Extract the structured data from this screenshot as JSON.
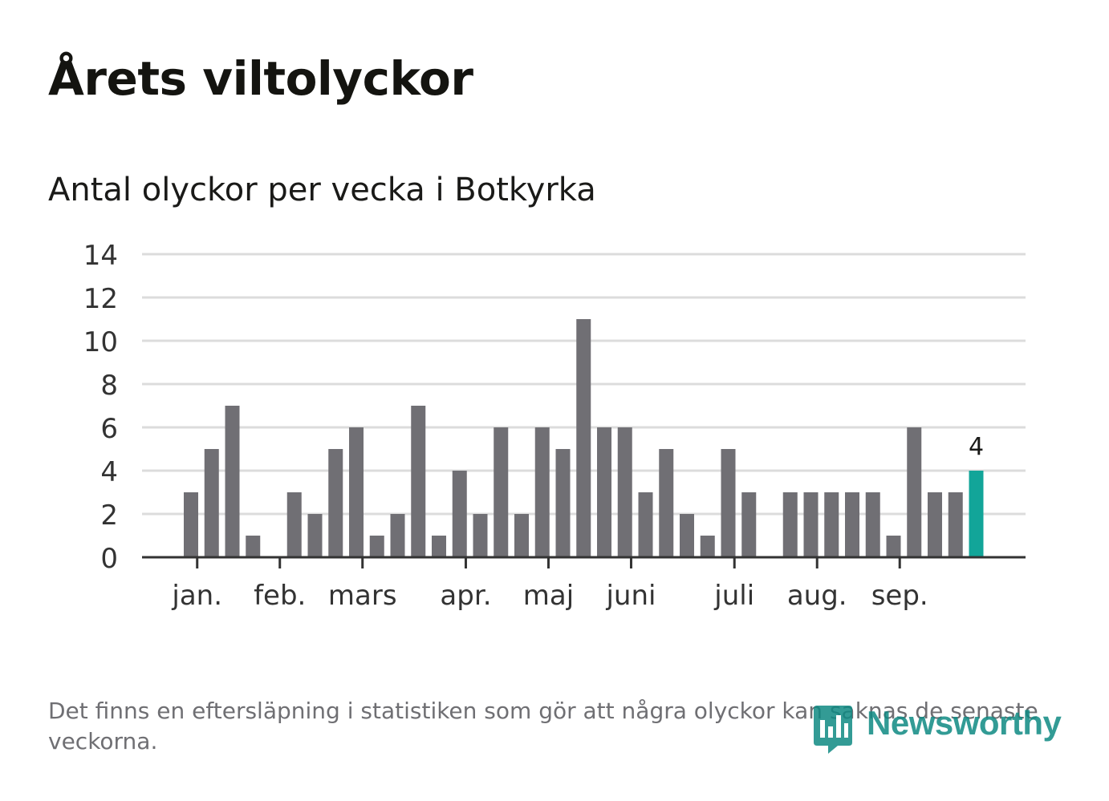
{
  "header": {
    "title": "Årets viltolyckor",
    "subtitle": "Antal olyckor per vecka i Botkyrka"
  },
  "footer": {
    "note": "Det finns en eftersläpning i statistiken som gör att några olyckor kan saknas de senaste veckorna.",
    "brand": "Newsworthy"
  },
  "colors": {
    "bar": "#706f74",
    "highlight": "#12a599",
    "grid": "#dcdcdc",
    "axis": "#333333",
    "text": "#1a1a18",
    "brand": "#0f8a83"
  },
  "chart_data": {
    "type": "bar",
    "title": "Antal olyckor per vecka i Botkyrka",
    "xlabel": "",
    "ylabel": "",
    "ylim": [
      0,
      14
    ],
    "yticks": [
      0,
      2,
      4,
      6,
      8,
      10,
      12,
      14
    ],
    "grid": true,
    "weeks": [
      1,
      2,
      3,
      4,
      5,
      6,
      7,
      8,
      9,
      10,
      11,
      12,
      13,
      14,
      15,
      16,
      17,
      18,
      19,
      20,
      21,
      22,
      23,
      24,
      25,
      26,
      27,
      28,
      29,
      30,
      31,
      32,
      33,
      34,
      35,
      36,
      37,
      38,
      39
    ],
    "values": [
      3,
      5,
      7,
      1,
      0,
      3,
      2,
      5,
      6,
      1,
      2,
      7,
      1,
      4,
      2,
      6,
      2,
      6,
      5,
      11,
      6,
      6,
      3,
      5,
      2,
      1,
      5,
      3,
      0,
      3,
      3,
      3,
      3,
      3,
      1,
      6,
      3,
      3,
      4
    ],
    "highlight_index": 38,
    "highlight_label": "4",
    "month_ticks": [
      {
        "label": "jan.",
        "week": 1.3
      },
      {
        "label": "feb.",
        "week": 5.3
      },
      {
        "label": "mars",
        "week": 9.3
      },
      {
        "label": "apr.",
        "week": 14.3
      },
      {
        "label": "maj",
        "week": 18.3
      },
      {
        "label": "juni",
        "week": 22.3
      },
      {
        "label": "juli",
        "week": 27.3
      },
      {
        "label": "aug.",
        "week": 31.3
      },
      {
        "label": "sep.",
        "week": 35.3
      }
    ]
  }
}
